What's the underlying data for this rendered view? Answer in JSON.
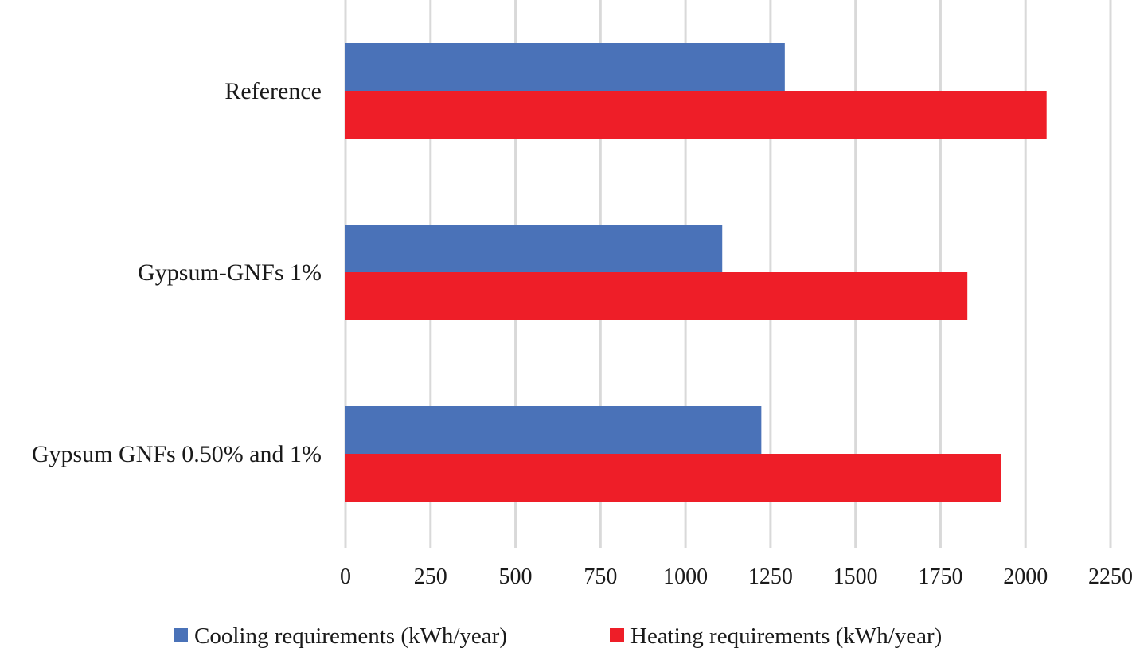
{
  "chart_data": {
    "type": "bar",
    "orientation": "horizontal",
    "categories": [
      "Reference",
      "Gypsum-GNFs 1%",
      "Gypsum GNFs 0.50% and 1%"
    ],
    "series": [
      {
        "name": "Cooling requirements (kWh/year)",
        "color": "#4a72b8",
        "values": [
          1292,
          1108,
          1223
        ]
      },
      {
        "name": "Heating requirements (kWh/year)",
        "color": "#ee1e28",
        "values": [
          2062,
          1829,
          1927
        ]
      }
    ],
    "xlim": [
      0,
      2250
    ],
    "xticks": [
      "0",
      "250",
      "500",
      "750",
      "1000",
      "1250",
      "1500",
      "1750",
      "2000",
      "2250"
    ],
    "grid": true,
    "legend_position": "bottom",
    "title": "",
    "xlabel": "",
    "ylabel": ""
  }
}
